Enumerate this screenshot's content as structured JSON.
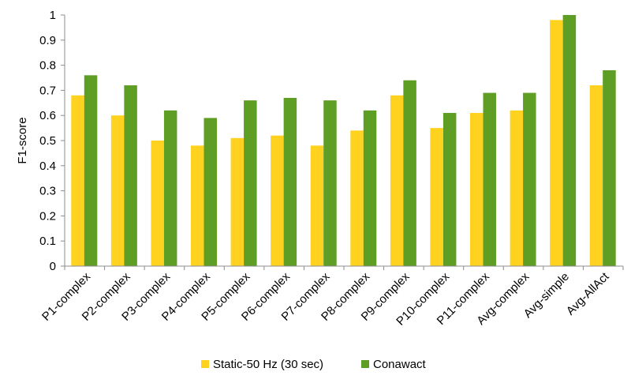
{
  "chart_data": {
    "type": "bar",
    "title": "",
    "xlabel": "",
    "ylabel": "F1-score",
    "ylim": [
      0,
      1
    ],
    "yticks": [
      "0",
      "0.1",
      "0.2",
      "0.3",
      "0.4",
      "0.5",
      "0.6",
      "0.7",
      "0.8",
      "0.9",
      "1"
    ],
    "grid": false,
    "legend_position": "bottom",
    "categories": [
      "P1-complex",
      "P2-complex",
      "P3-complex",
      "P4-complex",
      "P5-complex",
      "P6-complex",
      "P7-complex",
      "P8-complex",
      "P9-complex",
      "P10-complex",
      "P11-complex",
      "Avg-complex",
      "Avg-simple",
      "Avg-AllAct"
    ],
    "series": [
      {
        "name": "Static-50 Hz (30 sec)",
        "color": "#FFD21F",
        "values": [
          0.68,
          0.6,
          0.5,
          0.48,
          0.51,
          0.52,
          0.48,
          0.54,
          0.68,
          0.55,
          0.61,
          0.62,
          0.98,
          0.72
        ]
      },
      {
        "name": "Conawact",
        "color": "#5E9E25",
        "values": [
          0.76,
          0.72,
          0.62,
          0.59,
          0.66,
          0.67,
          0.66,
          0.62,
          0.74,
          0.61,
          0.69,
          0.69,
          1.0,
          0.78
        ]
      }
    ]
  }
}
